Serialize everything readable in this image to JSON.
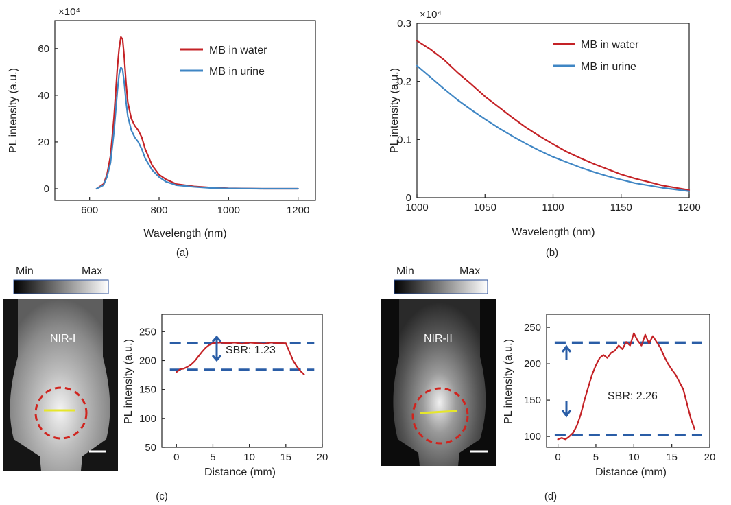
{
  "chart_data": [
    {
      "panel": "(a)",
      "type": "line",
      "multiplier": "×10⁴",
      "xlabel": "Wavelength (nm)",
      "ylabel": "PL intensity (a.u.)",
      "xlim": [
        500,
        1250
      ],
      "ylim": [
        -5,
        72
      ],
      "xticks": [
        600,
        800,
        1000,
        1200
      ],
      "yticks": [
        0,
        20,
        40,
        60
      ],
      "legend_position": "top-right",
      "series": [
        {
          "name": "MB in water",
          "color": "#c42226",
          "x": [
            620,
            640,
            650,
            660,
            670,
            680,
            685,
            690,
            695,
            700,
            705,
            710,
            720,
            730,
            740,
            750,
            760,
            780,
            800,
            820,
            850,
            900,
            950,
            1000,
            1100,
            1200
          ],
          "y": [
            0,
            2,
            6,
            14,
            30,
            52,
            60,
            65,
            64,
            56,
            45,
            37,
            30,
            27,
            25,
            22,
            17,
            10,
            6,
            4,
            2,
            1,
            0.5,
            0.2,
            0,
            0
          ]
        },
        {
          "name": "MB in urine",
          "color": "#3f86c4",
          "x": [
            620,
            640,
            650,
            660,
            670,
            680,
            685,
            690,
            695,
            700,
            705,
            710,
            720,
            730,
            740,
            750,
            760,
            780,
            800,
            820,
            850,
            900,
            950,
            1000,
            1100,
            1200
          ],
          "y": [
            0,
            1.5,
            5,
            11,
            24,
            42,
            49,
            52,
            51,
            45,
            37,
            31,
            25,
            22,
            20,
            17,
            13,
            8,
            5,
            3,
            1.5,
            0.8,
            0.3,
            0.1,
            0,
            0
          ]
        }
      ]
    },
    {
      "panel": "(b)",
      "type": "line",
      "multiplier": "×10⁴",
      "xlabel": "Wavelength (nm)",
      "ylabel": "PL intensity (a.u.)",
      "xlim": [
        1000,
        1200
      ],
      "ylim": [
        0,
        0.3
      ],
      "xticks": [
        1000,
        1050,
        1100,
        1150,
        1200
      ],
      "yticks": [
        0,
        0.1,
        0.2,
        0.3
      ],
      "legend_position": "top-right",
      "series": [
        {
          "name": "MB in water",
          "color": "#c42226",
          "x": [
            1000,
            1010,
            1020,
            1030,
            1040,
            1050,
            1060,
            1070,
            1080,
            1090,
            1100,
            1110,
            1120,
            1130,
            1140,
            1150,
            1160,
            1170,
            1180,
            1190,
            1200
          ],
          "y": [
            0.27,
            0.255,
            0.237,
            0.215,
            0.195,
            0.174,
            0.156,
            0.138,
            0.121,
            0.106,
            0.092,
            0.079,
            0.068,
            0.058,
            0.049,
            0.04,
            0.033,
            0.027,
            0.021,
            0.017,
            0.013
          ]
        },
        {
          "name": "MB in urine",
          "color": "#3f86c4",
          "x": [
            1000,
            1010,
            1020,
            1030,
            1040,
            1050,
            1060,
            1070,
            1080,
            1090,
            1100,
            1110,
            1120,
            1130,
            1140,
            1150,
            1160,
            1170,
            1180,
            1190,
            1200
          ],
          "y": [
            0.227,
            0.207,
            0.187,
            0.168,
            0.151,
            0.135,
            0.12,
            0.106,
            0.093,
            0.081,
            0.07,
            0.061,
            0.052,
            0.044,
            0.037,
            0.031,
            0.025,
            0.021,
            0.017,
            0.014,
            0.011
          ]
        }
      ]
    },
    {
      "panel": "(c)",
      "type": "line",
      "xlabel": "Distance (mm)",
      "ylabel": "PL intensity (a.u.)",
      "xlim": [
        -2,
        20
      ],
      "ylim": [
        50,
        280
      ],
      "xticks": [
        0,
        5,
        10,
        15,
        20
      ],
      "yticks": [
        50,
        100,
        150,
        200,
        250
      ],
      "image_label": "NIR-I",
      "colorbar": {
        "min_label": "Min",
        "max_label": "Max"
      },
      "annotation": "SBR: 1.23",
      "reference_lines": [
        230,
        184
      ],
      "series": [
        {
          "name": "",
          "color": "#c42226",
          "x": [
            0,
            0.5,
            1,
            1.5,
            2,
            2.5,
            3,
            3.5,
            4,
            4.5,
            5,
            6,
            7,
            8,
            9,
            10,
            11,
            12,
            13,
            14,
            15,
            15.5,
            16,
            16.5,
            17,
            17.5
          ],
          "y": [
            180,
            185,
            186,
            189,
            193,
            199,
            207,
            215,
            222,
            227,
            230,
            231,
            230,
            231,
            229,
            231,
            230,
            229,
            231,
            230,
            230,
            215,
            200,
            190,
            182,
            176
          ]
        }
      ]
    },
    {
      "panel": "(d)",
      "type": "line",
      "xlabel": "Distance (mm)",
      "ylabel": "PL intensity (a.u.)",
      "xlim": [
        -1.5,
        20
      ],
      "ylim": [
        85,
        268
      ],
      "xticks": [
        0,
        5,
        10,
        15,
        20
      ],
      "yticks": [
        100,
        150,
        200,
        250
      ],
      "image_label": "NIR-II",
      "colorbar": {
        "min_label": "Min",
        "max_label": "Max"
      },
      "annotation": "SBR: 2.26",
      "reference_lines": [
        229,
        102
      ],
      "series": [
        {
          "name": "",
          "color": "#c42226",
          "x": [
            0,
            0.5,
            1,
            1.5,
            2,
            2.5,
            3,
            3.5,
            4,
            4.5,
            5,
            5.5,
            6,
            6.5,
            7,
            7.5,
            8,
            8.5,
            9,
            9.5,
            10,
            10.5,
            11,
            11.5,
            12,
            12.5,
            13,
            13.5,
            14,
            14.5,
            15,
            15.5,
            16,
            16.5,
            17,
            17.5,
            18
          ],
          "y": [
            96,
            98,
            96,
            100,
            105,
            115,
            130,
            150,
            168,
            185,
            198,
            208,
            212,
            208,
            215,
            218,
            225,
            220,
            230,
            225,
            242,
            232,
            225,
            240,
            228,
            238,
            230,
            222,
            210,
            200,
            192,
            185,
            175,
            165,
            145,
            125,
            110
          ]
        }
      ]
    }
  ]
}
